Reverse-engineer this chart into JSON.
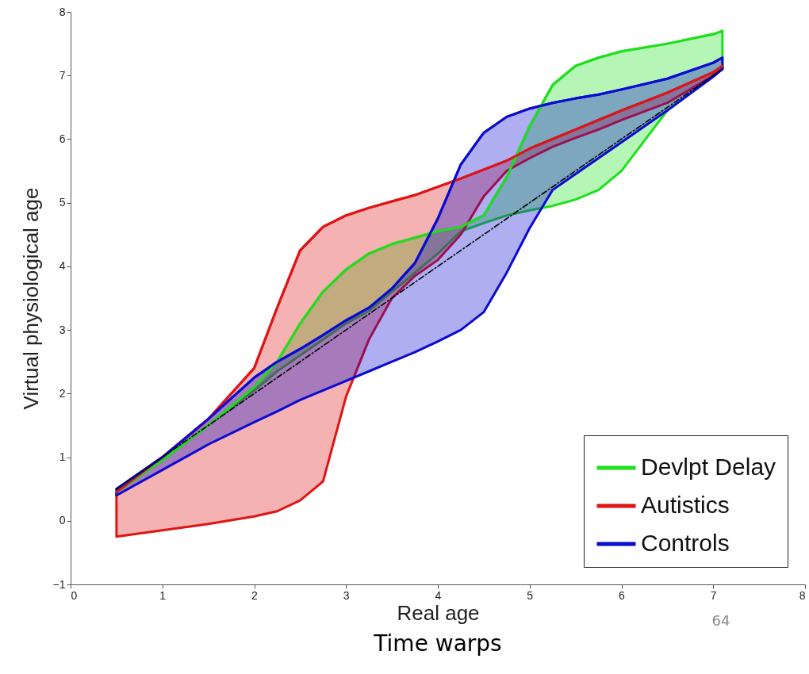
{
  "chart_data": {
    "type": "line",
    "title": "Time warps",
    "xlabel": "Real age",
    "ylabel": "Virtual physiological age",
    "annotations": [
      "64"
    ],
    "xlim": [
      0,
      8
    ],
    "xticks": [
      0,
      1,
      2,
      3,
      4,
      5,
      6,
      7,
      8
    ],
    "ylim": [
      -1,
      8
    ],
    "yticks": [
      -1,
      0,
      1,
      2,
      3,
      4,
      5,
      6,
      7,
      8
    ],
    "grid": false,
    "legend": "bottom right",
    "series": [
      {
        "name": "Devlpt Delay",
        "color": "#1ee01e",
        "x": [
          0.5,
          1,
          1.5,
          2,
          2.25,
          2.5,
          2.75,
          3,
          3.25,
          3.5,
          3.75,
          4,
          4.25,
          4.5,
          4.75,
          5,
          5.25,
          5.5,
          5.75,
          6,
          6.5,
          7,
          7.1
        ],
        "values": [
          0.45,
          0.95,
          1.5,
          2.1,
          2.5,
          3.1,
          3.6,
          3.95,
          4.2,
          4.35,
          4.45,
          4.55,
          4.62,
          4.8,
          5.4,
          6.2,
          6.85,
          7.15,
          7.28,
          7.38,
          7.5,
          7.65,
          7.7
        ],
        "upper": [
          0.45,
          0.95,
          1.5,
          2.1,
          2.5,
          3.1,
          3.6,
          3.95,
          4.2,
          4.35,
          4.45,
          4.55,
          4.62,
          4.8,
          5.4,
          6.2,
          6.85,
          7.15,
          7.28,
          7.38,
          7.5,
          7.65,
          7.7
        ],
        "lower": [
          0.45,
          0.95,
          1.5,
          2.05,
          2.35,
          2.6,
          2.85,
          3.1,
          3.3,
          3.6,
          3.9,
          4.2,
          4.55,
          4.68,
          4.8,
          4.88,
          4.95,
          5.05,
          5.2,
          5.5,
          6.45,
          7.0,
          7.1
        ]
      },
      {
        "name": "Autistics",
        "color": "#e01414",
        "x": [
          0.5,
          1,
          1.5,
          2,
          2.25,
          2.5,
          2.75,
          3,
          3.25,
          3.5,
          3.75,
          4,
          4.25,
          4.5,
          4.75,
          5,
          5.25,
          5.5,
          5.75,
          6,
          6.5,
          7,
          7.1
        ],
        "values": [
          0.45,
          1.0,
          1.6,
          2.4,
          3.35,
          4.25,
          4.62,
          4.8,
          4.92,
          5.02,
          5.12,
          5.25,
          5.38,
          5.52,
          5.66,
          5.85,
          6.0,
          6.15,
          6.3,
          6.45,
          6.73,
          7.05,
          7.15
        ],
        "upper": [
          0.45,
          1.0,
          1.6,
          2.4,
          3.35,
          4.25,
          4.62,
          4.8,
          4.92,
          5.02,
          5.12,
          5.25,
          5.38,
          5.52,
          5.66,
          5.85,
          6.0,
          6.15,
          6.3,
          6.45,
          6.73,
          7.05,
          7.15
        ],
        "lower": [
          -0.25,
          -0.15,
          -0.05,
          0.07,
          0.15,
          0.32,
          0.62,
          1.95,
          2.85,
          3.5,
          3.85,
          4.1,
          4.5,
          5.1,
          5.5,
          5.7,
          5.88,
          6.02,
          6.15,
          6.3,
          6.57,
          7.0,
          7.1
        ]
      },
      {
        "name": "Controls",
        "color": "#0a0ad2",
        "x": [
          0.5,
          1,
          1.5,
          2,
          2.25,
          2.5,
          2.75,
          3,
          3.25,
          3.5,
          3.75,
          4,
          4.25,
          4.5,
          4.75,
          5,
          5.25,
          5.5,
          5.75,
          6,
          6.5,
          7,
          7.1
        ],
        "values": [
          0.5,
          1.0,
          1.6,
          2.25,
          2.5,
          2.7,
          2.92,
          3.15,
          3.35,
          3.65,
          4.05,
          4.75,
          5.6,
          6.1,
          6.35,
          6.48,
          6.57,
          6.64,
          6.7,
          6.78,
          6.95,
          7.2,
          7.28
        ],
        "upper": [
          0.5,
          1.0,
          1.6,
          2.25,
          2.5,
          2.7,
          2.92,
          3.15,
          3.35,
          3.65,
          4.05,
          4.75,
          5.6,
          6.1,
          6.35,
          6.48,
          6.57,
          6.64,
          6.7,
          6.78,
          6.95,
          7.2,
          7.28
        ],
        "lower": [
          0.4,
          0.8,
          1.2,
          1.55,
          1.72,
          1.9,
          2.05,
          2.2,
          2.35,
          2.5,
          2.65,
          2.82,
          3.0,
          3.28,
          3.9,
          4.6,
          5.2,
          5.45,
          5.7,
          5.95,
          6.45,
          6.98,
          7.1
        ]
      },
      {
        "color": "#000000",
        "line_style": "dashed",
        "x": [
          0.5,
          1,
          1.5,
          2,
          2.5,
          3,
          3.5,
          4,
          4.5,
          5,
          5.5,
          6,
          6.5,
          7,
          7.1
        ],
        "values": [
          0.5,
          1,
          1.5,
          2,
          2.5,
          3,
          3.5,
          4,
          4.5,
          5,
          5.5,
          6,
          6.5,
          7,
          7.1
        ]
      }
    ]
  }
}
